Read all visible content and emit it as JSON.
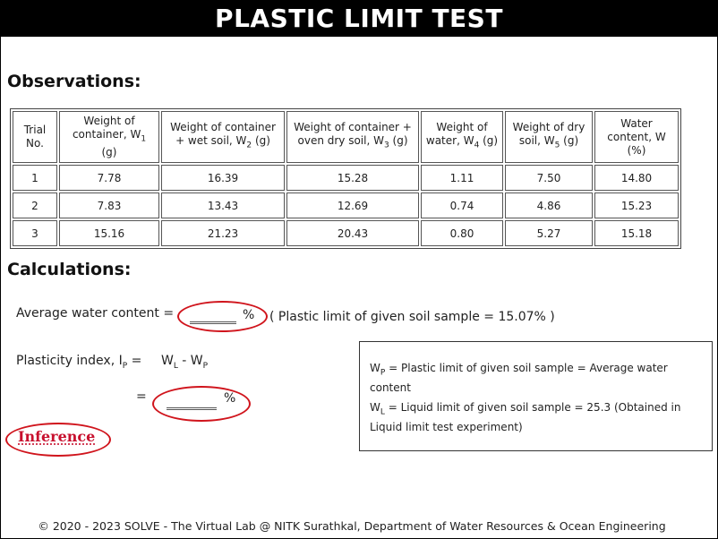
{
  "title": "PLASTIC LIMIT TEST",
  "observations": {
    "heading": "Observations:",
    "headers": [
      [
        "Trial No."
      ],
      [
        "Weight of container, W",
        "1",
        " (g)"
      ],
      [
        "Weight of container + wet soil, W",
        "2",
        " (g)"
      ],
      [
        "Weight of container + oven dry soil, W",
        "3",
        " (g)"
      ],
      [
        "Weight of water, W",
        "4",
        " (g)"
      ],
      [
        "Weight of dry soil, W",
        "5",
        " (g)"
      ],
      [
        "Water content, W (%)"
      ]
    ],
    "rows": [
      [
        "1",
        "7.78",
        "16.39",
        "15.28",
        "1.11",
        "7.50",
        "14.80"
      ],
      [
        "2",
        "7.83",
        "13.43",
        "12.69",
        "0.74",
        "4.86",
        "15.23"
      ],
      [
        "3",
        "15.16",
        "21.23",
        "20.43",
        "0.80",
        "5.27",
        "15.18"
      ]
    ]
  },
  "calculations": {
    "heading": "Calculations:",
    "avg_label": "Average water content =",
    "avg_unit": "%",
    "avg_note": "( Plastic limit of given soil sample = 15.07% )",
    "pi_label": "Plasticity index, I",
    "pi_label_sub": "P",
    "pi_eq": "=",
    "pi_formula_a": "W",
    "pi_formula_a_sub": "L",
    "pi_formula_mid": " - W",
    "pi_formula_b_sub": "P",
    "pi_eq2": "=",
    "pi_unit": "%",
    "inference": "Inference"
  },
  "info": {
    "wp_symbol": "W",
    "wp_sub": "P",
    "wp_text": " = Plastic limit of given soil sample = Average water content",
    "wl_symbol": "W",
    "wl_sub": "L",
    "wl_text": " = Liquid limit of given soil sample = 25.3 (Obtained in Liquid limit test experiment)"
  },
  "footer": "© 2020 - 2023 SOLVE - The Virtual Lab @ NITK Surathkal, Department of Water Resources & Ocean Engineering",
  "colors": {
    "accent_red": "#d0141c",
    "title_bg": "#000000"
  }
}
